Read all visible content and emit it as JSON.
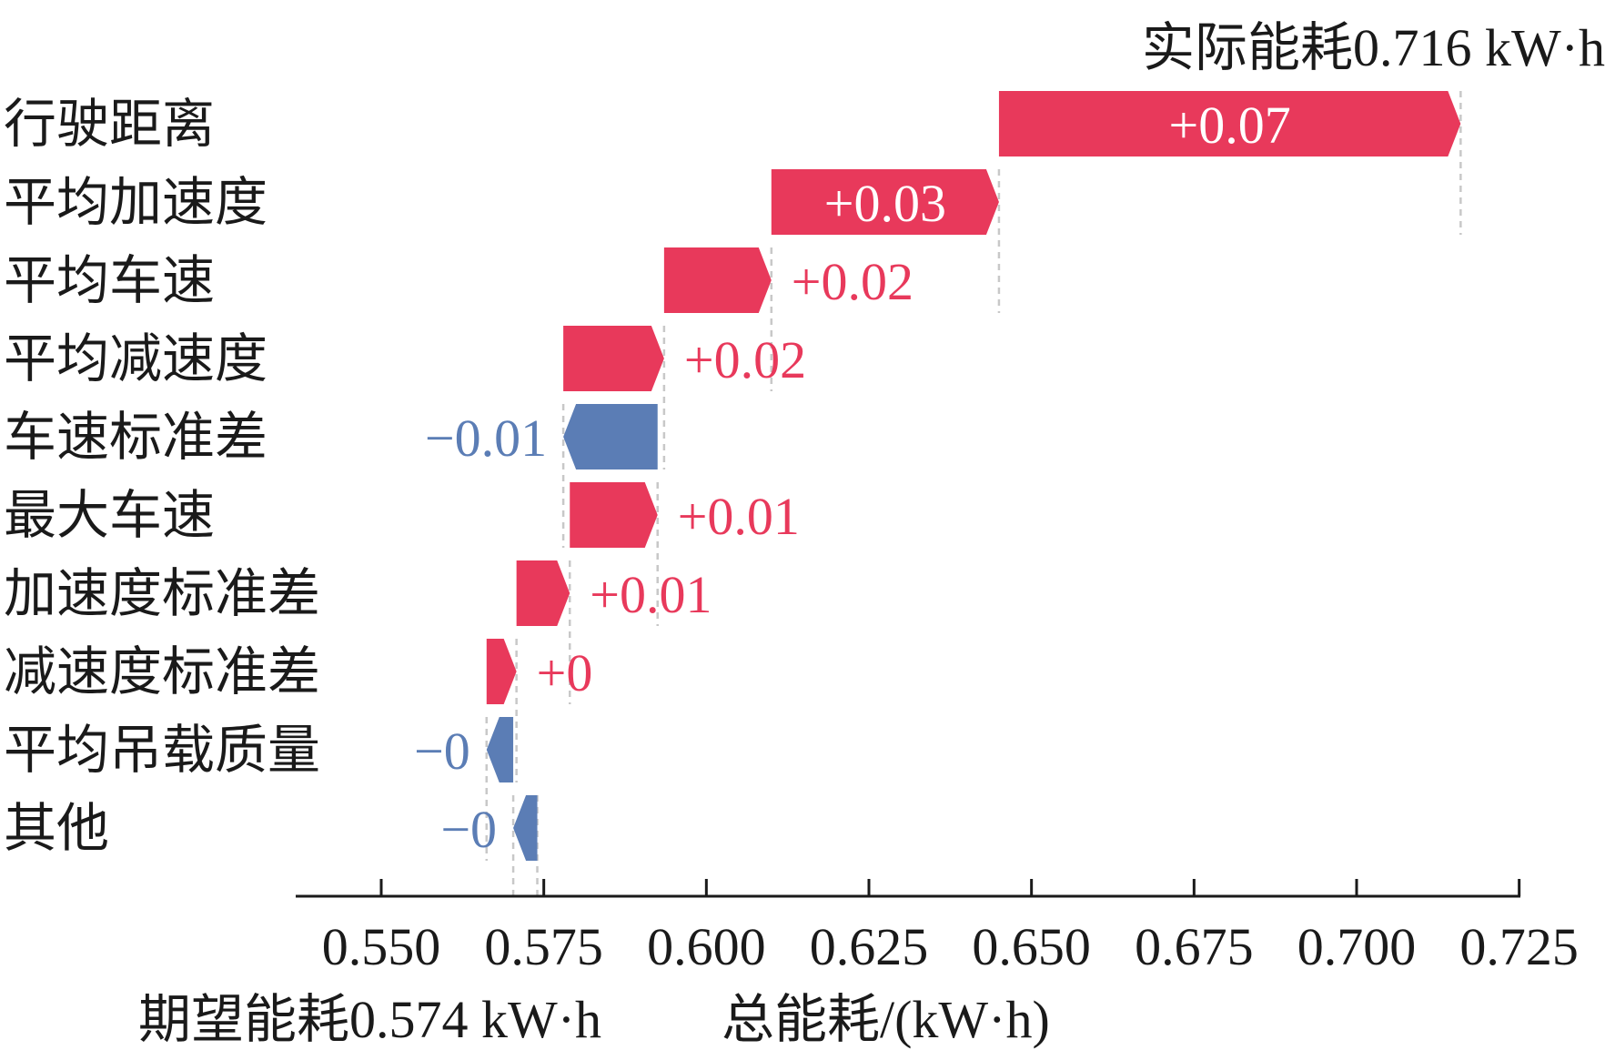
{
  "chart_data": {
    "type": "waterfall",
    "base_value": 0.574,
    "final_value": 0.716,
    "top_annotation": "实际能耗0.716 kW·h",
    "bottom_annotation": "期望能耗0.574 kW·h",
    "xlabel": "总能耗/(kW·h)",
    "xlim": [
      0.537,
      0.725
    ],
    "xticks": [
      0.55,
      0.575,
      0.6,
      0.625,
      0.65,
      0.675,
      0.7,
      0.725
    ],
    "xtick_labels": [
      "0.550",
      "0.575",
      "0.600",
      "0.625",
      "0.650",
      "0.675",
      "0.700",
      "0.725"
    ],
    "colors": {
      "positive": "#e8395b",
      "negative": "#5b7db5"
    },
    "features": [
      {
        "name": "行驶距离",
        "start": 0.645,
        "end": 0.716,
        "label": "+0.07"
      },
      {
        "name": "平均加速度",
        "start": 0.61,
        "end": 0.645,
        "label": "+0.03"
      },
      {
        "name": "平均车速",
        "start": 0.5935,
        "end": 0.61,
        "label": "+0.02"
      },
      {
        "name": "平均减速度",
        "start": 0.578,
        "end": 0.5935,
        "label": "+0.02"
      },
      {
        "name": "车速标准差",
        "start": 0.5925,
        "end": 0.578,
        "label": "−0.01"
      },
      {
        "name": "最大车速",
        "start": 0.579,
        "end": 0.5925,
        "label": "+0.01"
      },
      {
        "name": "加速度标准差",
        "start": 0.5708,
        "end": 0.579,
        "label": "+0.01"
      },
      {
        "name": "减速度标准差",
        "start": 0.5662,
        "end": 0.5708,
        "label": "+0"
      },
      {
        "name": "平均吊载质量",
        "start": 0.5703,
        "end": 0.5662,
        "label": "−0"
      },
      {
        "name": "其他",
        "start": 0.574,
        "end": 0.5703,
        "label": "−0"
      }
    ]
  }
}
